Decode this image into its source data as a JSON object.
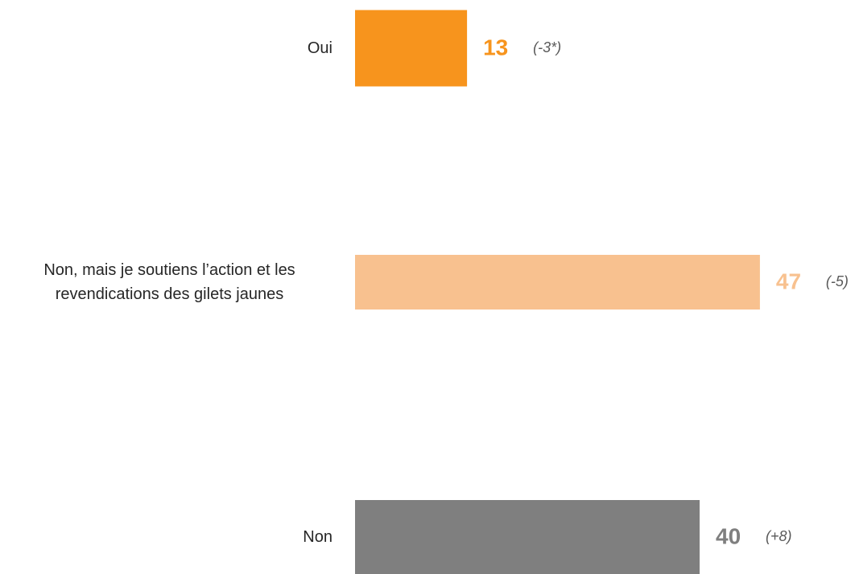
{
  "chart_data": {
    "type": "hbar",
    "categories": [
      "Oui",
      "Non, mais je soutiens l’action et les revendications des gilets jaunes",
      "Non"
    ],
    "values": [
      13,
      47,
      40
    ],
    "annotations": [
      "(-3*)",
      "(-5)",
      "(+8)"
    ],
    "colors": [
      "#f7941d",
      "#f8c18f",
      "#7f7f7f"
    ]
  }
}
